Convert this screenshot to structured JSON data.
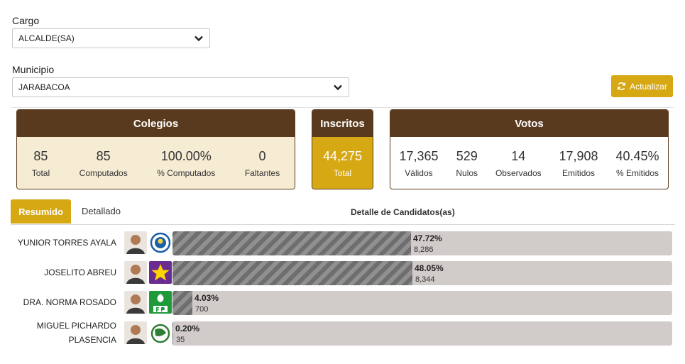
{
  "filters": {
    "cargo_label": "Cargo",
    "cargo_value": "ALCALDE(SA)",
    "municipio_label": "Municipio",
    "municipio_value": "JARABACOA",
    "refresh_label": "Actualizar"
  },
  "colegios": {
    "title": "Colegios",
    "stats": [
      {
        "value": "85",
        "label": "Total"
      },
      {
        "value": "85",
        "label": "Computados"
      },
      {
        "value": "100.00%",
        "label": "% Computados"
      },
      {
        "value": "0",
        "label": "Faltantes"
      }
    ]
  },
  "inscritos": {
    "title": "Inscritos",
    "value": "44,275",
    "label": "Total"
  },
  "votos": {
    "title": "Votos",
    "stats": [
      {
        "value": "17,365",
        "label": "Válidos"
      },
      {
        "value": "529",
        "label": "Nulos"
      },
      {
        "value": "14",
        "label": "Observados"
      },
      {
        "value": "17,908",
        "label": "Emitidos"
      },
      {
        "value": "40.45%",
        "label": "% Emitidos"
      }
    ]
  },
  "tabs": {
    "resumen": "Resumido",
    "detallado": "Detallado",
    "detail_title": "Detalle de Candidatos(as)"
  },
  "candidates": [
    {
      "name": "YUNIOR TORRES AYALA",
      "percent": "47.72%",
      "votes": "8,286",
      "fraction": 0.4772,
      "party_icon": "pld-logo-icon",
      "party_color": "#1b5fa8"
    },
    {
      "name": "JOSELITO ABREU",
      "percent": "48.05%",
      "votes": "8,344",
      "fraction": 0.4805,
      "party_icon": "prm-star-icon",
      "party_color": "#6a2c91"
    },
    {
      "name": "DRA. NORMA ROSADO",
      "percent": "4.03%",
      "votes": "700",
      "fraction": 0.0403,
      "party_icon": "fp-logo-icon",
      "party_color": "#1e9a3a"
    },
    {
      "name": "MIGUEL PICHARDO PLASENCIA",
      "percent": "0.20%",
      "votes": "35",
      "fraction": 0.002,
      "party_icon": "party-globe-icon",
      "party_color": "#2e7d32"
    }
  ]
}
